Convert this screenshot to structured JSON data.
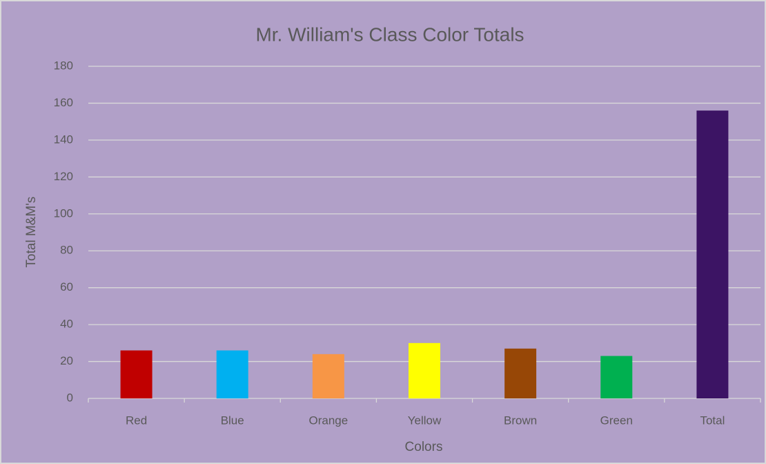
{
  "chart_data": {
    "type": "bar",
    "title": "Mr. William's Class Color Totals",
    "x_label": "Colors",
    "y_label": "Total M&M's",
    "categories": [
      "Red",
      "Blue",
      "Orange",
      "Yellow",
      "Brown",
      "Green",
      "Total"
    ],
    "values": [
      26,
      26,
      24,
      30,
      27,
      23,
      156
    ],
    "colors": [
      "#c00000",
      "#00b0f0",
      "#f79646",
      "#ffff00",
      "#974706",
      "#00b050",
      "#3c1464"
    ],
    "ylim": [
      0,
      180
    ],
    "yticks": [
      0,
      20,
      40,
      60,
      80,
      100,
      120,
      140,
      160,
      180
    ],
    "grid": true
  }
}
